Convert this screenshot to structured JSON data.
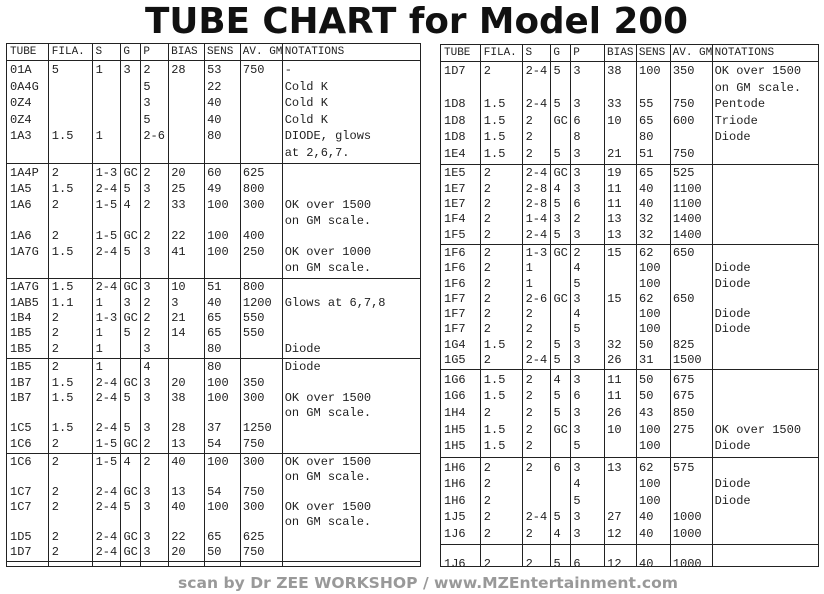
{
  "title": "TUBE CHART for Model 200",
  "header": [
    "TUBE",
    "FILA.",
    "S",
    "G",
    "P",
    "BIAS",
    "SENS",
    "AV. GM",
    "NOTATIONS"
  ],
  "tables": [
    {
      "groups": [
        {
          "rows": [
            {
              "tube": "01A",
              "fila": "5",
              "s": "1",
              "g": "3",
              "p": "2",
              "bias": "28",
              "sens": "53",
              "gm": "750",
              "note": "-"
            },
            {
              "tube": "0A4G",
              "p": "5",
              "sens": "22",
              "note": "Cold K"
            },
            {
              "tube": "0Z4",
              "p": "3",
              "sens": "40",
              "note": "Cold K"
            },
            {
              "tube": "0Z4",
              "p": "5",
              "sens": "40",
              "note": "Cold K"
            },
            {
              "tube": "1A3",
              "fila": "1.5",
              "s": "1",
              "p": "2-6",
              "sens": "80",
              "note": "DIODE, glows"
            },
            {
              "note": "at 2,6,7."
            }
          ]
        },
        {
          "rows": [
            {
              "tube": "1A4P",
              "fila": "2",
              "s": "1-3",
              "g": "GC",
              "p": "2",
              "bias": "20",
              "sens": "60",
              "gm": "625"
            },
            {
              "tube": "1A5",
              "fila": "1.5",
              "s": "2-4",
              "g": "5",
              "p": "3",
              "bias": "25",
              "sens": "49",
              "gm": "800"
            },
            {
              "tube": "1A6",
              "fila": "2",
              "s": "1-5",
              "g": "4",
              "p": "2",
              "bias": "33",
              "sens": "100",
              "gm": "300",
              "note": "OK over 1500"
            },
            {
              "note": "on GM scale."
            },
            {
              "tube": "1A6",
              "fila": "2",
              "s": "1-5",
              "g": "GC",
              "p": "2",
              "bias": "22",
              "sens": "100",
              "gm": "400"
            },
            {
              "tube": "1A7G",
              "fila": "1.5",
              "s": "2-4",
              "g": "5",
              "p": "3",
              "bias": "41",
              "sens": "100",
              "gm": "250",
              "note": "OK over 1000"
            },
            {
              "note": "on GM scale."
            }
          ]
        },
        {
          "rows": [
            {
              "tube": "1A7G",
              "fila": "1.5",
              "s": "2-4",
              "g": "GC",
              "p": "3",
              "bias": "10",
              "sens": "51",
              "gm": "800"
            },
            {
              "tube": "1AB5",
              "fila": "1.1",
              "s": "1",
              "g": "3",
              "p": "2",
              "bias": "3",
              "sens": "40",
              "gm": "1200",
              "note": "Glows at 6,7,8"
            },
            {
              "tube": "1B4",
              "fila": "2",
              "s": "1-3",
              "g": "GC",
              "p": "2",
              "bias": "21",
              "sens": "65",
              "gm": "550"
            },
            {
              "tube": "1B5",
              "fila": "2",
              "s": "1",
              "g": "5",
              "p": "2",
              "bias": "14",
              "sens": "65",
              "gm": "550"
            },
            {
              "tube": "1B5",
              "fila": "2",
              "s": "1",
              "p": "3",
              "sens": "80",
              "note": "Diode"
            }
          ]
        },
        {
          "rows": [
            {
              "tube": "1B5",
              "fila": "2",
              "s": "1",
              "p": "4",
              "sens": "80",
              "note": "Diode"
            },
            {
              "tube": "1B7",
              "fila": "1.5",
              "s": "2-4",
              "g": "GC",
              "p": "3",
              "bias": "20",
              "sens": "100",
              "gm": "350"
            },
            {
              "tube": "1B7",
              "fila": "1.5",
              "s": "2-4",
              "g": "5",
              "p": "3",
              "bias": "38",
              "sens": "100",
              "gm": "300",
              "note": "OK over 1500"
            },
            {
              "note": "on GM scale."
            },
            {
              "tube": "1C5",
              "fila": "1.5",
              "s": "2-4",
              "g": "5",
              "p": "3",
              "bias": "28",
              "sens": "37",
              "gm": "1250"
            },
            {
              "tube": "1C6",
              "fila": "2",
              "s": "1-5",
              "g": "GC",
              "p": "2",
              "bias": "13",
              "sens": "54",
              "gm": "750"
            }
          ]
        },
        {
          "rows": [
            {
              "tube": "1C6",
              "fila": "2",
              "s": "1-5",
              "g": "4",
              "p": "2",
              "bias": "40",
              "sens": "100",
              "gm": "300",
              "note": "OK over 1500"
            },
            {
              "note": "on GM scale."
            },
            {
              "tube": "1C7",
              "fila": "2",
              "s": "2-4",
              "g": "GC",
              "p": "3",
              "bias": "13",
              "sens": "54",
              "gm": "750"
            },
            {
              "tube": "1C7",
              "fila": "2",
              "s": "2-4",
              "g": "5",
              "p": "3",
              "bias": "40",
              "sens": "100",
              "gm": "300",
              "note": "OK over 1500"
            },
            {
              "note": "on GM scale."
            },
            {
              "tube": "1D5",
              "fila": "2",
              "s": "2-4",
              "g": "GC",
              "p": "3",
              "bias": "22",
              "sens": "65",
              "gm": "625"
            },
            {
              "tube": "1D7",
              "fila": "2",
              "s": "2-4",
              "g": "GC",
              "p": "3",
              "bias": "20",
              "sens": "50",
              "gm": "750"
            }
          ]
        }
      ]
    },
    {
      "groups": [
        {
          "rows": [
            {
              "tube": "1D7",
              "fila": "2",
              "s": "2-4",
              "g": "5",
              "p": "3",
              "bias": "38",
              "sens": "100",
              "gm": "350",
              "note": "OK over 1500"
            },
            {
              "note": "on GM scale."
            },
            {
              "tube": "1D8",
              "fila": "1.5",
              "s": "2-4",
              "g": "5",
              "p": "3",
              "bias": "33",
              "sens": "55",
              "gm": "750",
              "note": "Pentode"
            },
            {
              "tube": "1D8",
              "fila": "1.5",
              "s": "2",
              "g": "GC",
              "p": "6",
              "bias": "10",
              "sens": "65",
              "gm": "600",
              "note": "Triode"
            },
            {
              "tube": "1D8",
              "fila": "1.5",
              "s": "2",
              "p": "8",
              "sens": "80",
              "note": "Diode"
            },
            {
              "tube": "1E4",
              "fila": "1.5",
              "s": "2",
              "g": "5",
              "p": "3",
              "bias": "21",
              "sens": "51",
              "gm": "750"
            }
          ]
        },
        {
          "rows": [
            {
              "tube": "1E5",
              "fila": "2",
              "s": "2-4",
              "g": "GC",
              "p": "3",
              "bias": "19",
              "sens": "65",
              "gm": "525"
            },
            {
              "tube": "1E7",
              "fila": "2",
              "s": "2-8",
              "g": "4",
              "p": "3",
              "bias": "11",
              "sens": "40",
              "gm": "1100"
            },
            {
              "tube": "1E7",
              "fila": "2",
              "s": "2-8",
              "g": "5",
              "p": "6",
              "bias": "11",
              "sens": "40",
              "gm": "1100"
            },
            {
              "tube": "1F4",
              "fila": "2",
              "s": "1-4",
              "g": "3",
              "p": "2",
              "bias": "13",
              "sens": "32",
              "gm": "1400"
            },
            {
              "tube": "1F5",
              "fila": "2",
              "s": "2-4",
              "g": "5",
              "p": "3",
              "bias": "13",
              "sens": "32",
              "gm": "1400"
            }
          ]
        },
        {
          "rows": [
            {
              "tube": "1F6",
              "fila": "2",
              "s": "1-3",
              "g": "GC",
              "p": "2",
              "bias": "15",
              "sens": "62",
              "gm": "650"
            },
            {
              "tube": "1F6",
              "fila": "2",
              "s": "1",
              "p": "4",
              "sens": "100",
              "note": "Diode"
            },
            {
              "tube": "1F6",
              "fila": "2",
              "s": "1",
              "p": "5",
              "sens": "100",
              "note": "Diode"
            },
            {
              "tube": "1F7",
              "fila": "2",
              "s": "2-6",
              "g": "GC",
              "p": "3",
              "bias": "15",
              "sens": "62",
              "gm": "650"
            },
            {
              "tube": "1F7",
              "fila": "2",
              "s": "2",
              "p": "4",
              "sens": "100",
              "note": "Diode"
            },
            {
              "tube": "1F7",
              "fila": "2",
              "s": "2",
              "p": "5",
              "sens": "100",
              "note": "Diode"
            },
            {
              "tube": "1G4",
              "fila": "1.5",
              "s": "2",
              "g": "5",
              "p": "3",
              "bias": "32",
              "sens": "50",
              "gm": "825"
            },
            {
              "tube": "1G5",
              "fila": "2",
              "s": "2-4",
              "g": "5",
              "p": "3",
              "bias": "26",
              "sens": "31",
              "gm": "1500"
            }
          ]
        },
        {
          "rows": [
            {
              "tube": "1G6",
              "fila": "1.5",
              "s": "2",
              "g": "4",
              "p": "3",
              "bias": "11",
              "sens": "50",
              "gm": "675"
            },
            {
              "tube": "1G6",
              "fila": "1.5",
              "s": "2",
              "g": "5",
              "p": "6",
              "bias": "11",
              "sens": "50",
              "gm": "675"
            },
            {
              "tube": "1H4",
              "fila": "2",
              "s": "2",
              "g": "5",
              "p": "3",
              "bias": "26",
              "sens": "43",
              "gm": "850"
            },
            {
              "tube": "1H5",
              "fila": "1.5",
              "s": "2",
              "g": "GC",
              "p": "3",
              "bias": "10",
              "sens": "100",
              "gm": "275",
              "note": "OK over 1500"
            },
            {
              "tube": "1H5",
              "fila": "1.5",
              "s": "2",
              "p": "5",
              "sens": "100",
              "note": "Diode"
            }
          ]
        },
        {
          "rows": [
            {
              "tube": "1H6",
              "fila": "2",
              "s": "2",
              "g": "6",
              "p": "3",
              "bias": "13",
              "sens": "62",
              "gm": "575"
            },
            {
              "tube": "1H6",
              "fila": "2",
              "p": "4",
              "sens": "100",
              "note": "Diode"
            },
            {
              "tube": "1H6",
              "fila": "2",
              "p": "5",
              "sens": "100",
              "note": "Diode"
            },
            {
              "tube": "1J5",
              "fila": "2",
              "s": "2-4",
              "g": "5",
              "p": "3",
              "bias": "27",
              "sens": "40",
              "gm": "1000"
            },
            {
              "tube": "1J6",
              "fila": "2",
              "s": "2",
              "g": "4",
              "p": "3",
              "bias": "12",
              "sens": "40",
              "gm": "1000"
            }
          ]
        },
        {
          "rows": [
            {
              "tube": "1J6",
              "fila": "2",
              "s": "2",
              "g": "5",
              "p": "6",
              "bias": "12",
              "sens": "40",
              "gm": "1000"
            }
          ]
        }
      ]
    }
  ],
  "footer": "scan by Dr ZEE WORKSHOP / www.MZEntertainment.com"
}
